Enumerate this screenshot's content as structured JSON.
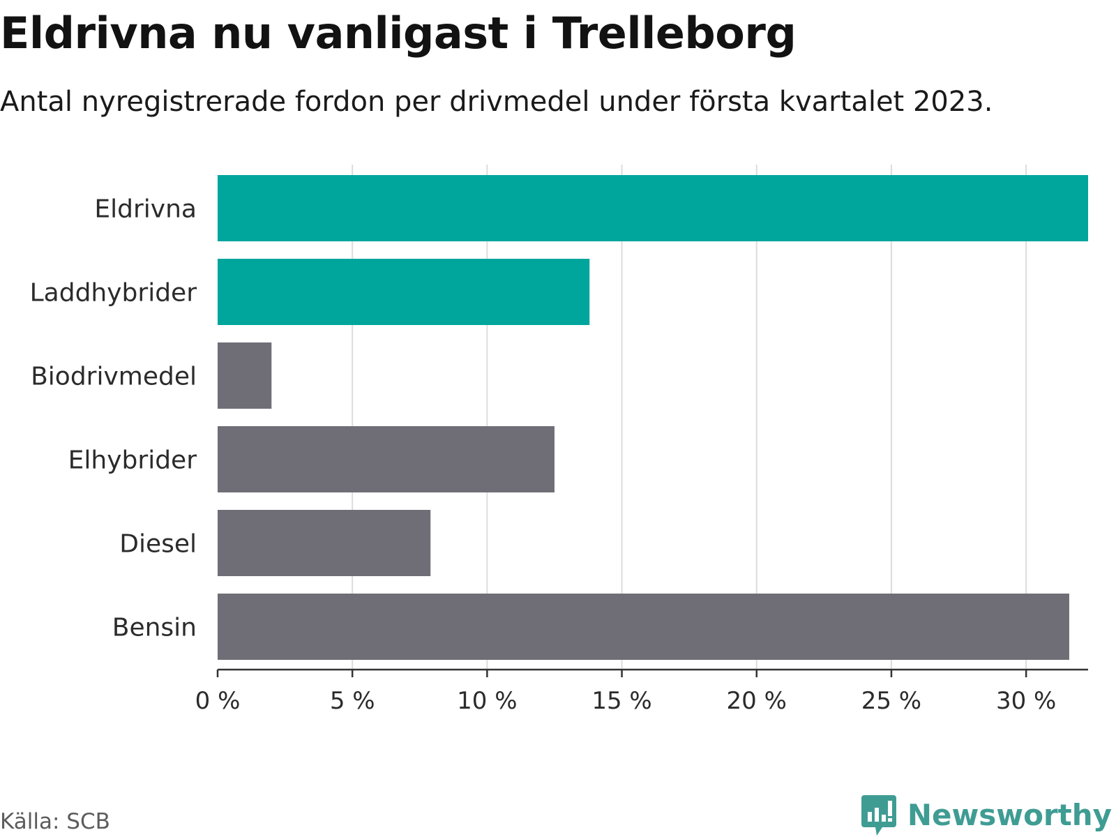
{
  "chart_data": {
    "type": "bar",
    "orientation": "horizontal",
    "title": "Eldrivna nu vanligast i Trelleborg",
    "subtitle": "Antal nyregistrerade fordon per drivmedel under första kvartalet 2023.",
    "categories": [
      "Eldrivna",
      "Laddhybrider",
      "Biodrivmedel",
      "Elhybrider",
      "Diesel",
      "Bensin"
    ],
    "values": [
      32.3,
      13.8,
      2.0,
      12.5,
      7.9,
      31.6
    ],
    "colors": [
      "#00a59b",
      "#00a59b",
      "#6f6e77",
      "#6f6e77",
      "#6f6e77",
      "#6f6e77"
    ],
    "xticks": [
      0,
      5,
      10,
      15,
      20,
      25,
      30
    ],
    "xtick_labels": [
      "0 %",
      "5 %",
      "10 %",
      "15 %",
      "20 %",
      "25 %",
      "30 %"
    ],
    "xlim": [
      0,
      32.3
    ],
    "xlabel": "",
    "ylabel": "",
    "grid": true
  },
  "source": "Källa: SCB",
  "logo": {
    "text": "Newsworthy",
    "color": "#3f9c93"
  }
}
